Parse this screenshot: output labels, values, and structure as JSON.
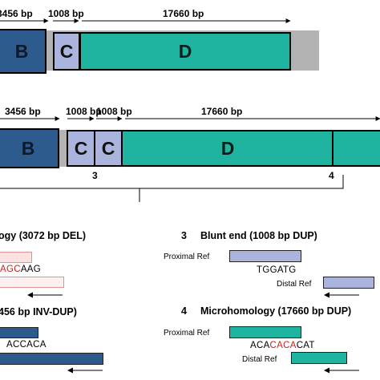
{
  "top": {
    "sizes": [
      "3456 bp",
      "1008 bp",
      "17660 bp"
    ],
    "segments": [
      "B",
      "C",
      "D"
    ]
  },
  "middle": {
    "sizes": [
      "3456 bp",
      "1008 bp",
      "1008 bp",
      "17660 bp"
    ],
    "segments": [
      "B",
      "C",
      "C",
      "D"
    ],
    "breakpoints": [
      "3",
      "4"
    ]
  },
  "junctions": {
    "left1": {
      "title": "ogy (3072 bp DEL)",
      "seq_red": "AGC",
      "seq_black": "AAG"
    },
    "left2": {
      "title": "456 bp INV-DUP)",
      "seq": "ACCACA"
    },
    "right3": {
      "number": "3",
      "title": "Blunt end (1008 bp DUP)",
      "proximal": "Proximal Ref",
      "seq": "TGGATG",
      "distal": "Distal Ref"
    },
    "right4": {
      "number": "4",
      "title": "Microhomology (17660 bp DUP)",
      "proximal": "Proximal Ref",
      "seq_pre": "ACA",
      "seq_red": "CACA",
      "seq_post": "CAT",
      "distal": "Distal Ref"
    }
  },
  "colors": {
    "B": "#2e5b8e",
    "C": "#aab4dc",
    "D": "#1fb4a0",
    "gap": "#b3b3b3",
    "left_bar_light": "#fbe1e1",
    "highlight": "#d01c1c"
  }
}
